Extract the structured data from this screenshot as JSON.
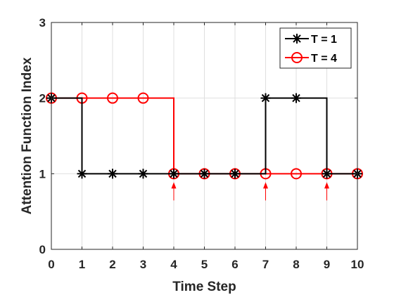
{
  "chart_data": {
    "type": "line",
    "xlabel": "Time Step",
    "ylabel": "Attention Function Index",
    "xlim": [
      0,
      10
    ],
    "ylim": [
      0,
      3
    ],
    "x_ticks": [
      "0",
      "1",
      "2",
      "3",
      "4",
      "5",
      "6",
      "7",
      "8",
      "9",
      "10"
    ],
    "y_ticks": [
      "0",
      "1",
      "2",
      "3"
    ],
    "grid": true,
    "legend_position": "top-right",
    "plot_type": "stairs",
    "series": [
      {
        "name": "T = 1",
        "color": "#000000",
        "marker": "asterisk",
        "x": [
          0,
          1,
          2,
          3,
          4,
          5,
          6,
          7,
          8,
          9,
          10
        ],
        "y": [
          2,
          1,
          1,
          1,
          1,
          1,
          1,
          2,
          2,
          1,
          1
        ]
      },
      {
        "name": "T = 4",
        "color": "#ff0000",
        "marker": "circle",
        "x": [
          0,
          1,
          2,
          3,
          4,
          5,
          6,
          7,
          8,
          9,
          10
        ],
        "y": [
          2,
          2,
          2,
          2,
          1,
          1,
          1,
          1,
          1,
          1,
          1
        ]
      }
    ],
    "annotations": [
      {
        "type": "arrow",
        "x": 4,
        "y": 1,
        "color": "#ff0000"
      },
      {
        "type": "arrow",
        "x": 7,
        "y": 1,
        "color": "#ff0000"
      },
      {
        "type": "arrow",
        "x": 9,
        "y": 1,
        "color": "#ff0000"
      }
    ]
  }
}
